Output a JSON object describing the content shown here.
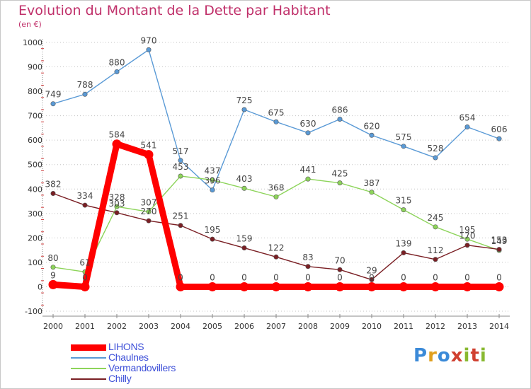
{
  "title": "Evolution du Montant de la Dette par Habitant",
  "subtitle": "(en €)",
  "logo_text": "Proxiti",
  "chart_data": {
    "type": "line",
    "title": "Evolution du Montant de la Dette par Habitant",
    "subtitle": "(en €)",
    "xlabel": "",
    "ylabel": "",
    "ylim": [
      -100,
      1000
    ],
    "yticks": [
      -100,
      0,
      100,
      200,
      300,
      400,
      500,
      600,
      700,
      800,
      900,
      1000
    ],
    "x": [
      "2000",
      "2001",
      "2002",
      "2003",
      "2004",
      "2005",
      "2006",
      "2007",
      "2008",
      "2009",
      "2010",
      "2011",
      "2012",
      "2013",
      "2014"
    ],
    "grid": "horizontal-dotted",
    "legend_position": "bottom-left",
    "series": [
      {
        "name": "LIHONS",
        "color": "#ff0000",
        "values": [
          9,
          0,
          584,
          541,
          0,
          0,
          0,
          0,
          0,
          0,
          0,
          0,
          0,
          0,
          0
        ]
      },
      {
        "name": "Chaulnes",
        "color": "#5a9ad6",
        "values": [
          749,
          788,
          880,
          970,
          517,
          396,
          725,
          675,
          630,
          686,
          620,
          575,
          528,
          654,
          606
        ]
      },
      {
        "name": "Vermandovillers",
        "color": "#8dd45a",
        "values": [
          80,
          61,
          328,
          307,
          453,
          437,
          403,
          368,
          441,
          425,
          387,
          315,
          245,
          195,
          149
        ]
      },
      {
        "name": "Chilly",
        "color": "#7a1f24",
        "values": [
          382,
          334,
          303,
          270,
          251,
          195,
          159,
          122,
          83,
          70,
          29,
          139,
          112,
          170,
          153
        ]
      }
    ]
  }
}
